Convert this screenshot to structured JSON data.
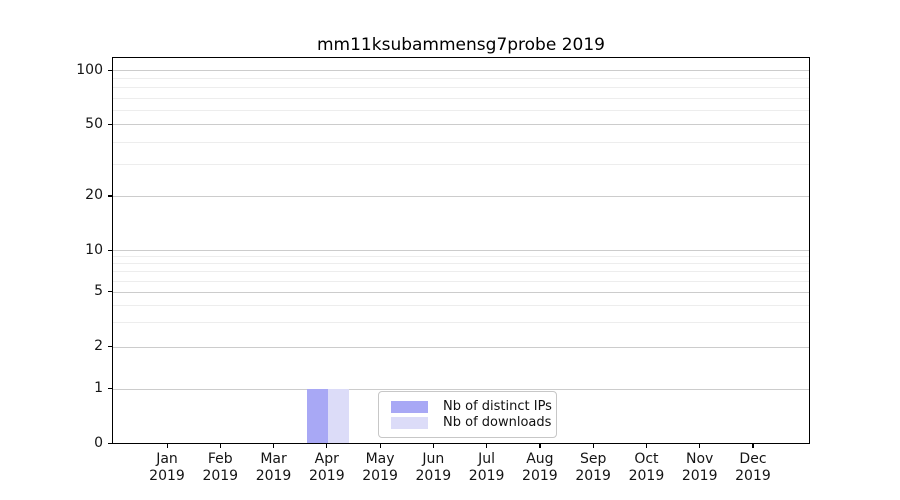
{
  "chart_data": {
    "type": "bar",
    "title": "mm11ksubammensg7probe 2019",
    "categories": [
      "Jan 2019",
      "Feb 2019",
      "Mar 2019",
      "Apr 2019",
      "May 2019",
      "Jun 2019",
      "Jul 2019",
      "Aug 2019",
      "Sep 2019",
      "Oct 2019",
      "Nov 2019",
      "Dec 2019"
    ],
    "x": {
      "months": [
        "Jan",
        "Feb",
        "Mar",
        "Apr",
        "May",
        "Jun",
        "Jul",
        "Aug",
        "Sep",
        "Oct",
        "Nov",
        "Dec"
      ],
      "year": "2019"
    },
    "series": [
      {
        "name": "Nb of distinct IPs",
        "color": "#a8a8f5",
        "values": [
          0,
          0,
          0,
          1,
          0,
          0,
          0,
          0,
          0,
          0,
          0,
          0
        ]
      },
      {
        "name": "Nb of downloads",
        "color": "#dcdcf8",
        "values": [
          0,
          0,
          0,
          1,
          0,
          0,
          0,
          0,
          0,
          0,
          0,
          0
        ]
      }
    ],
    "xlabel": "",
    "ylabel": "",
    "yscale": "symlog",
    "ylim": [
      0,
      116
    ],
    "yticks_major": [
      0,
      1,
      2,
      5,
      10,
      20,
      50,
      100
    ],
    "yticks_minor": [
      3,
      4,
      6,
      7,
      8,
      9,
      30,
      40,
      60,
      70,
      80,
      90
    ],
    "grid": true,
    "legend_position": "lower center"
  },
  "colors": {
    "major_grid": "#cccccc",
    "minor_grid": "#ededed",
    "axis": "#000000",
    "background": "#ffffff"
  }
}
